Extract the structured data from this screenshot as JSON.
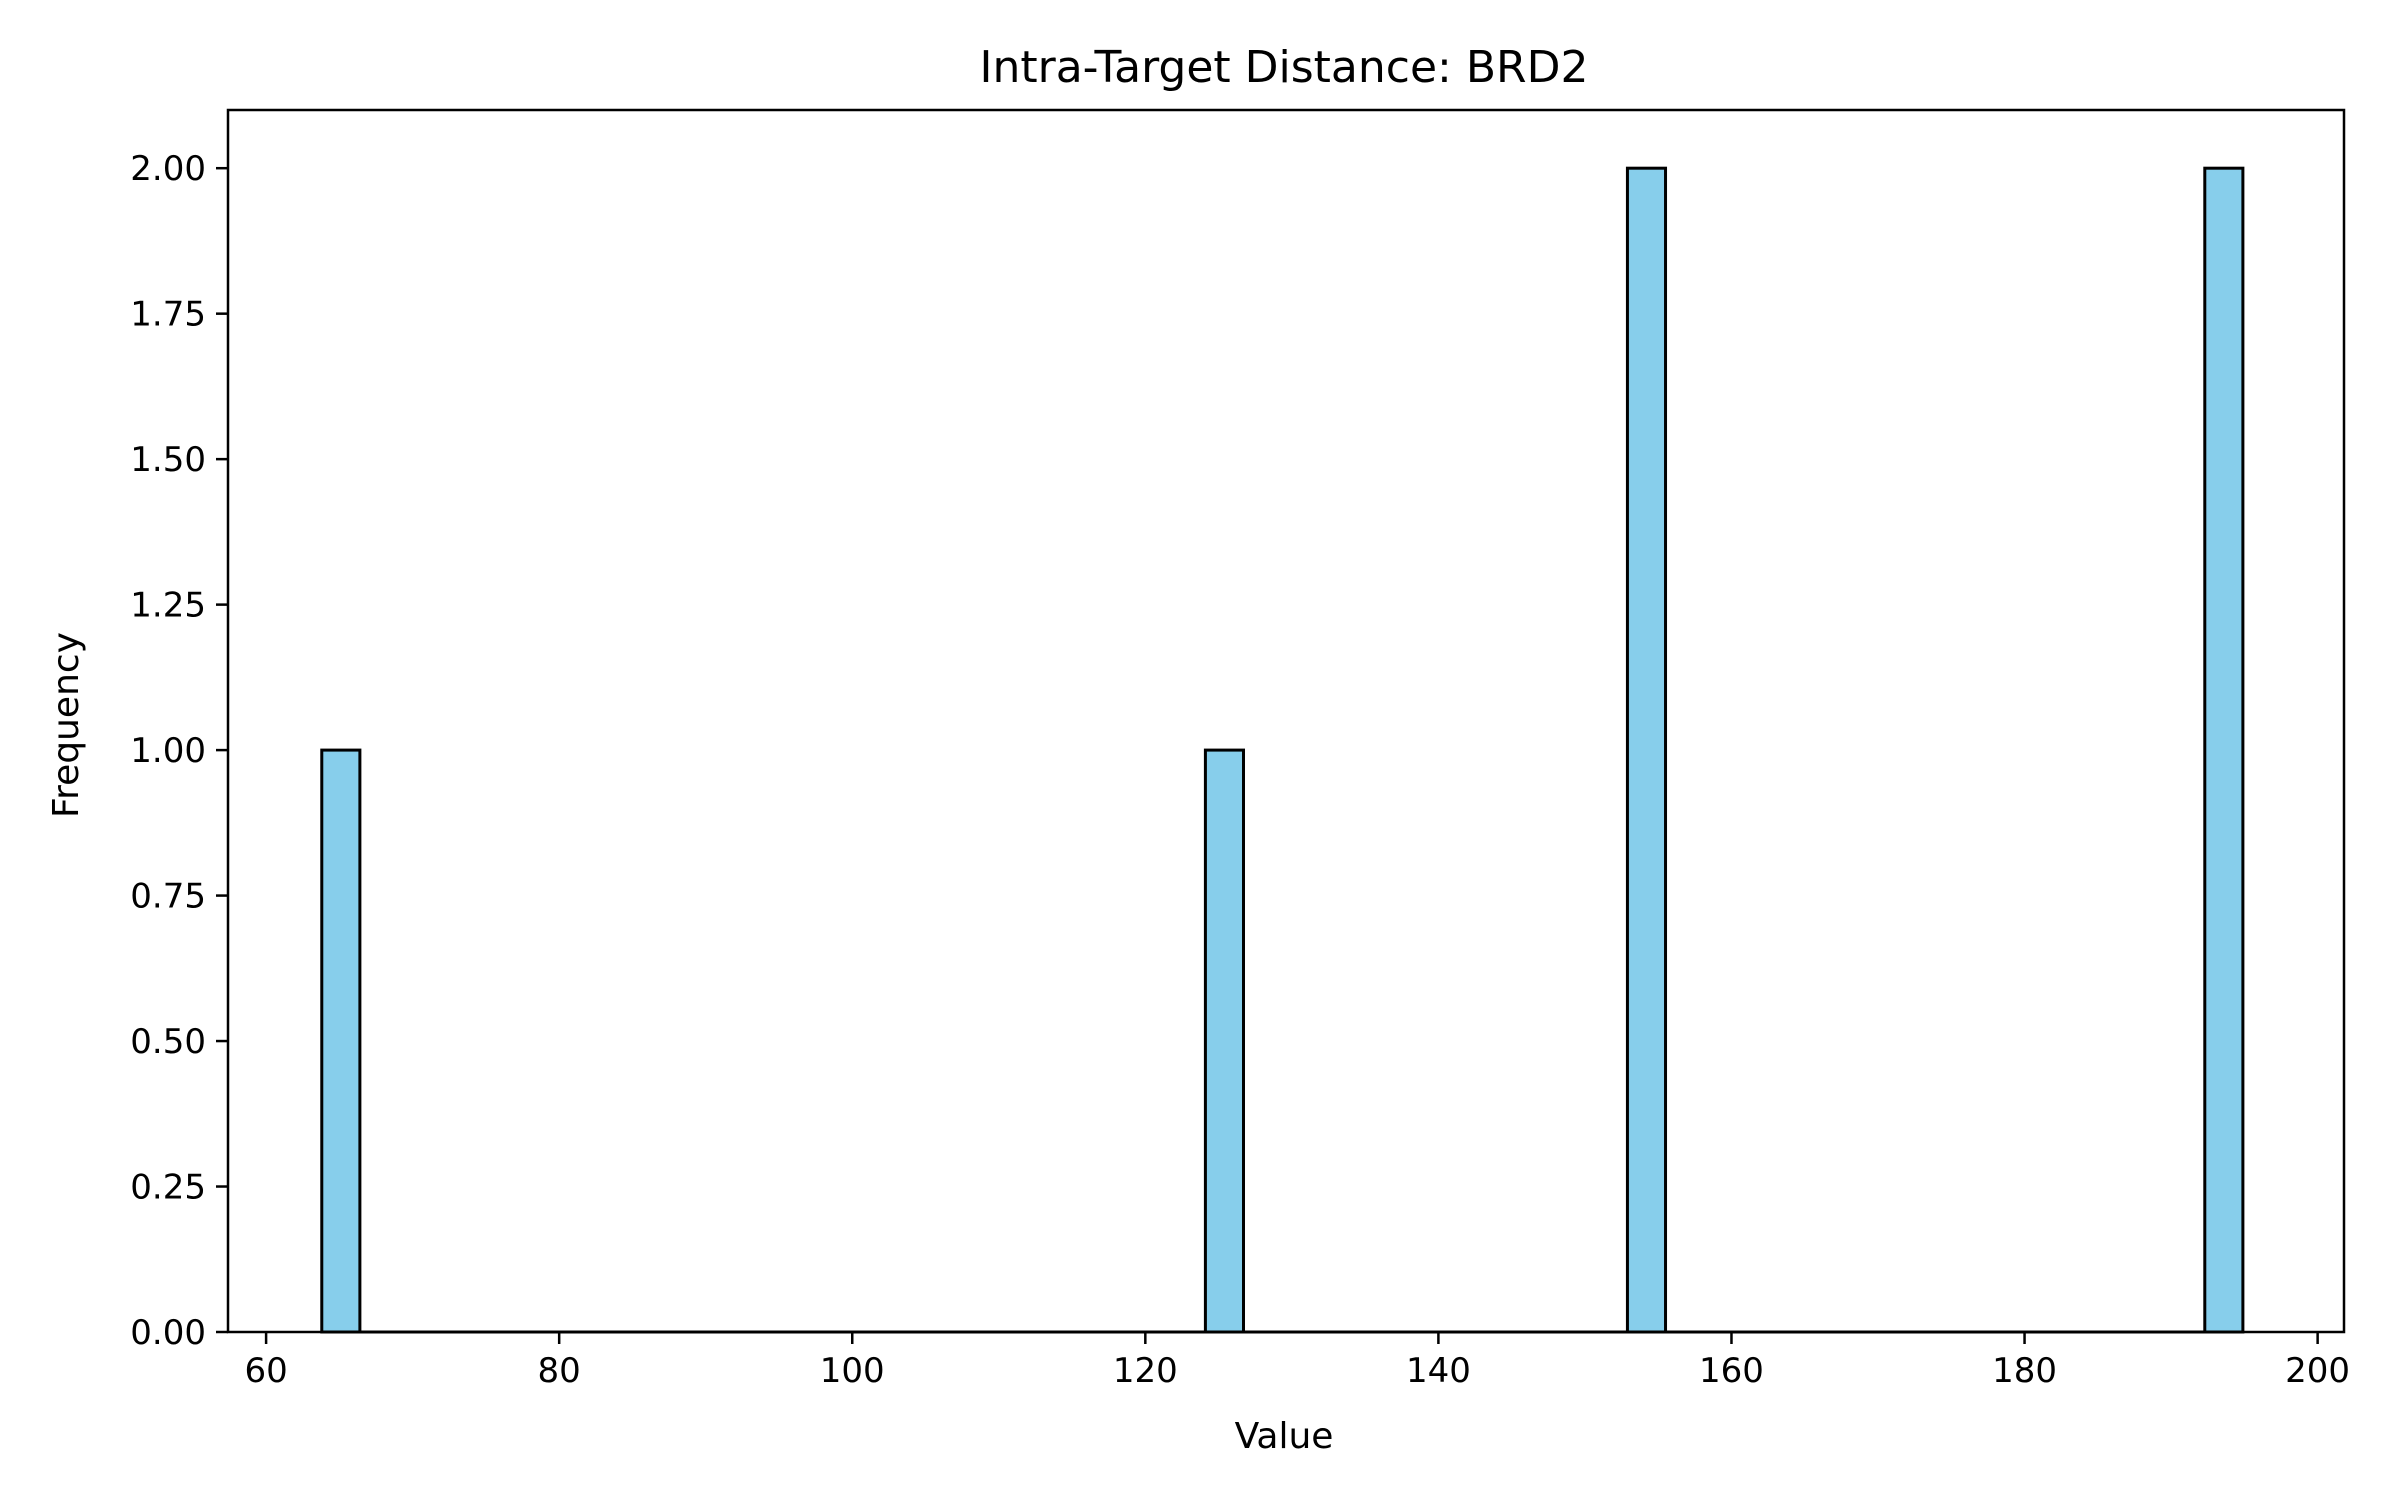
{
  "chart_data": {
    "type": "bar",
    "title": "Intra-Target Distance: BRD2",
    "xlabel": "Value",
    "ylabel": "Frequency",
    "xlim": [
      57.4,
      201.8
    ],
    "ylim": [
      0,
      2.1
    ],
    "x_ticks": [
      60,
      80,
      100,
      120,
      140,
      160,
      180,
      200
    ],
    "y_ticks": [
      0,
      0.25,
      0.5,
      0.75,
      1.0,
      1.25,
      1.5,
      1.75,
      2.0
    ],
    "y_tick_labels": [
      "0.00",
      "0.25",
      "0.50",
      "0.75",
      "1.00",
      "1.25",
      "1.50",
      "1.75",
      "2.00"
    ],
    "bins": [
      {
        "x0": 63.8,
        "x1": 66.4,
        "count": 1
      },
      {
        "x0": 124.1,
        "x1": 126.7,
        "count": 1
      },
      {
        "x0": 152.9,
        "x1": 155.5,
        "count": 2
      },
      {
        "x0": 192.3,
        "x1": 194.9,
        "count": 2
      }
    ],
    "bar_color": "#87CEEB",
    "edge_color": "#000000",
    "grid": false,
    "legend": "none"
  }
}
